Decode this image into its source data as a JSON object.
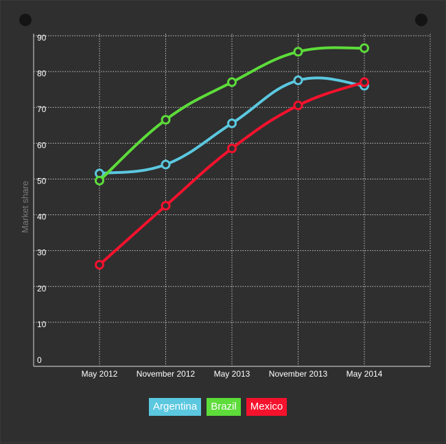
{
  "chart_data": {
    "type": "line",
    "ylabel": "Market share",
    "xlabel": "",
    "categories": [
      "May 2012",
      "November 2012",
      "May 2013",
      "November 2013",
      "May 2014"
    ],
    "y_ticks": [
      "0",
      "10",
      "20",
      "30",
      "40",
      "50",
      "60",
      "70",
      "80",
      "90"
    ],
    "ylim": [
      0,
      90
    ],
    "grid": true,
    "legend_placement": "bottom-center",
    "series": [
      {
        "name": "Argentina",
        "color": "#5bc8e0",
        "values": [
          52.5,
          55,
          66.5,
          78.5,
          77
        ]
      },
      {
        "name": "Brazil",
        "color": "#5ddc3a",
        "values": [
          50.5,
          67.5,
          78,
          86.5,
          87.5
        ]
      },
      {
        "name": "Mexico",
        "color": "#f5122d",
        "values": [
          27,
          43.5,
          59.5,
          71.5,
          78
        ]
      }
    ]
  }
}
